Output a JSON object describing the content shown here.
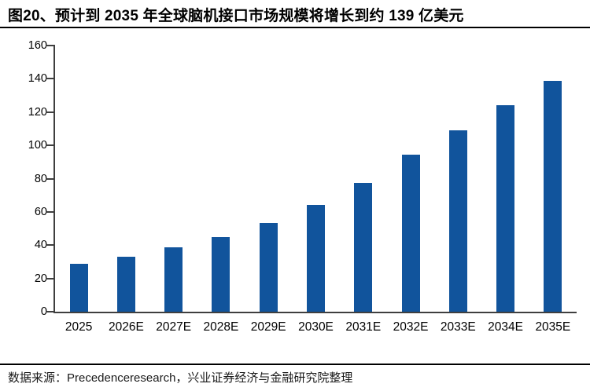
{
  "header": {
    "title": "图20、预计到 2035 年全球脑机接口市场规模将增长到约 139 亿美元"
  },
  "chart_data": {
    "type": "bar",
    "title": "图20、预计到 2035 年全球脑机接口市场规模将增长到约 139 亿美元",
    "categories": [
      "2025",
      "2026E",
      "2027E",
      "2028E",
      "2029E",
      "2030E",
      "2031E",
      "2032E",
      "2033E",
      "2034E",
      "2035E"
    ],
    "values": [
      29,
      33,
      38.5,
      45,
      53.5,
      64,
      77.5,
      94.5,
      109,
      124,
      139
    ],
    "xlabel": "",
    "ylabel": "",
    "ylim": [
      0,
      160
    ],
    "yticks": [
      0,
      20,
      40,
      60,
      80,
      100,
      120,
      140,
      160
    ],
    "grid": false,
    "legend_position": "none",
    "bar_color": "#11549C",
    "axis_color": "#3f3f3f",
    "title_color": "#000000"
  },
  "footer": {
    "source": "数据来源：Precedenceresearch，兴业证券经济与金融研究院整理"
  }
}
